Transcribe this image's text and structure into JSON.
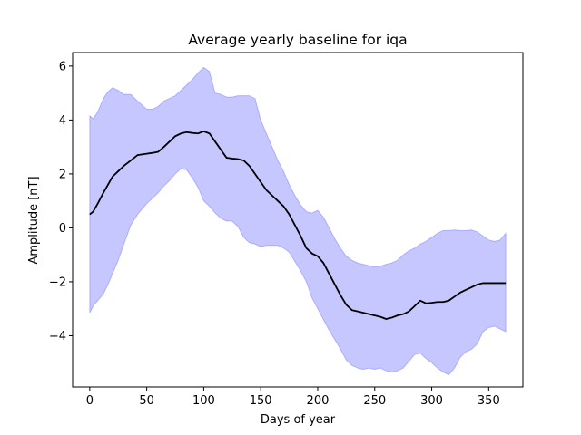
{
  "chart_data": {
    "type": "line",
    "title": "Average yearly baseline for iqa",
    "xlabel": "Days of year",
    "ylabel": "Amplitude [nT]",
    "xlim": [
      -15,
      380
    ],
    "ylim": [
      -5.9,
      6.5
    ],
    "xticks": [
      0,
      50,
      100,
      150,
      200,
      250,
      300,
      350
    ],
    "yticks": [
      -4,
      -2,
      0,
      2,
      4,
      6
    ],
    "grid": false,
    "band_color": "#0000ff",
    "band_opacity": 0.22,
    "line_color": "#000000",
    "series": [
      {
        "x": [
          0,
          3,
          7,
          12,
          16,
          20,
          25,
          30,
          36,
          42,
          50,
          55,
          60,
          65,
          70,
          75,
          80,
          85,
          90,
          95,
          100,
          105,
          110,
          115,
          120,
          125,
          130,
          135,
          140,
          145,
          150,
          155,
          160,
          165,
          170,
          175,
          180,
          185,
          190,
          195,
          200,
          205,
          210,
          215,
          220,
          225,
          230,
          235,
          240,
          245,
          250,
          255,
          260,
          265,
          270,
          275,
          280,
          285,
          290,
          295,
          300,
          305,
          310,
          315,
          320,
          325,
          330,
          335,
          340,
          345,
          350,
          355,
          360,
          365
        ],
        "values": [
          0.5,
          0.6,
          0.9,
          1.3,
          1.6,
          1.9,
          2.1,
          2.3,
          2.5,
          2.7,
          2.75,
          2.78,
          2.82,
          3.0,
          3.2,
          3.4,
          3.5,
          3.55,
          3.52,
          3.5,
          3.58,
          3.5,
          3.2,
          2.9,
          2.6,
          2.57,
          2.55,
          2.5,
          2.3,
          2.0,
          1.7,
          1.4,
          1.2,
          1.0,
          0.8,
          0.5,
          0.1,
          -0.3,
          -0.75,
          -0.95,
          -1.05,
          -1.3,
          -1.7,
          -2.1,
          -2.5,
          -2.85,
          -3.05,
          -3.1,
          -3.15,
          -3.2,
          -3.25,
          -3.3,
          -3.38,
          -3.33,
          -3.25,
          -3.2,
          -3.1,
          -2.9,
          -2.7,
          -2.8,
          -2.78,
          -2.75,
          -2.75,
          -2.7,
          -2.55,
          -2.4,
          -2.3,
          -2.2,
          -2.1,
          -2.05,
          -2.05,
          -2.05,
          -2.05,
          -2.05
        ]
      }
    ],
    "band": {
      "x": [
        0,
        3,
        7,
        12,
        16,
        20,
        25,
        30,
        36,
        42,
        50,
        55,
        60,
        65,
        70,
        75,
        80,
        85,
        90,
        95,
        100,
        105,
        110,
        115,
        120,
        125,
        130,
        135,
        140,
        145,
        150,
        155,
        160,
        165,
        170,
        175,
        180,
        185,
        190,
        195,
        200,
        205,
        210,
        215,
        220,
        225,
        230,
        235,
        240,
        245,
        250,
        255,
        260,
        265,
        270,
        275,
        280,
        285,
        290,
        295,
        300,
        305,
        310,
        315,
        320,
        325,
        330,
        335,
        340,
        345,
        350,
        355,
        360,
        365
      ],
      "upper": [
        4.15,
        4.05,
        4.3,
        4.8,
        5.05,
        5.2,
        5.1,
        4.95,
        4.95,
        4.7,
        4.4,
        4.4,
        4.5,
        4.7,
        4.8,
        4.9,
        5.1,
        5.3,
        5.5,
        5.75,
        5.95,
        5.8,
        5.0,
        4.95,
        4.85,
        4.85,
        4.9,
        4.9,
        4.9,
        4.8,
        4.0,
        3.5,
        3.0,
        2.5,
        2.1,
        1.6,
        1.2,
        0.85,
        0.6,
        0.55,
        0.65,
        0.4,
        0.0,
        -0.4,
        -0.75,
        -1.05,
        -1.2,
        -1.3,
        -1.35,
        -1.4,
        -1.45,
        -1.42,
        -1.35,
        -1.3,
        -1.2,
        -1.0,
        -0.85,
        -0.75,
        -0.6,
        -0.5,
        -0.35,
        -0.2,
        -0.1,
        -0.1,
        -0.08,
        -0.1,
        -0.1,
        -0.08,
        -0.15,
        -0.3,
        -0.45,
        -0.5,
        -0.45,
        -0.2
      ],
      "lower": [
        -3.15,
        -2.9,
        -2.7,
        -2.45,
        -2.1,
        -1.7,
        -1.2,
        -0.6,
        0.1,
        0.5,
        0.9,
        1.1,
        1.3,
        1.55,
        1.75,
        2.0,
        2.2,
        2.15,
        1.85,
        1.5,
        1.0,
        0.8,
        0.55,
        0.35,
        0.25,
        0.25,
        0.05,
        -0.35,
        -0.55,
        -0.6,
        -0.7,
        -0.65,
        -0.65,
        -0.65,
        -0.75,
        -0.9,
        -1.25,
        -1.6,
        -2.0,
        -2.6,
        -3.0,
        -3.4,
        -3.8,
        -4.15,
        -4.5,
        -4.9,
        -5.1,
        -5.2,
        -5.25,
        -5.2,
        -5.25,
        -5.2,
        -5.3,
        -5.35,
        -5.3,
        -5.2,
        -4.95,
        -4.7,
        -4.65,
        -4.85,
        -5.0,
        -5.2,
        -5.35,
        -5.45,
        -5.2,
        -4.8,
        -4.6,
        -4.5,
        -4.3,
        -3.85,
        -3.7,
        -3.65,
        -3.75,
        -3.85
      ]
    }
  }
}
